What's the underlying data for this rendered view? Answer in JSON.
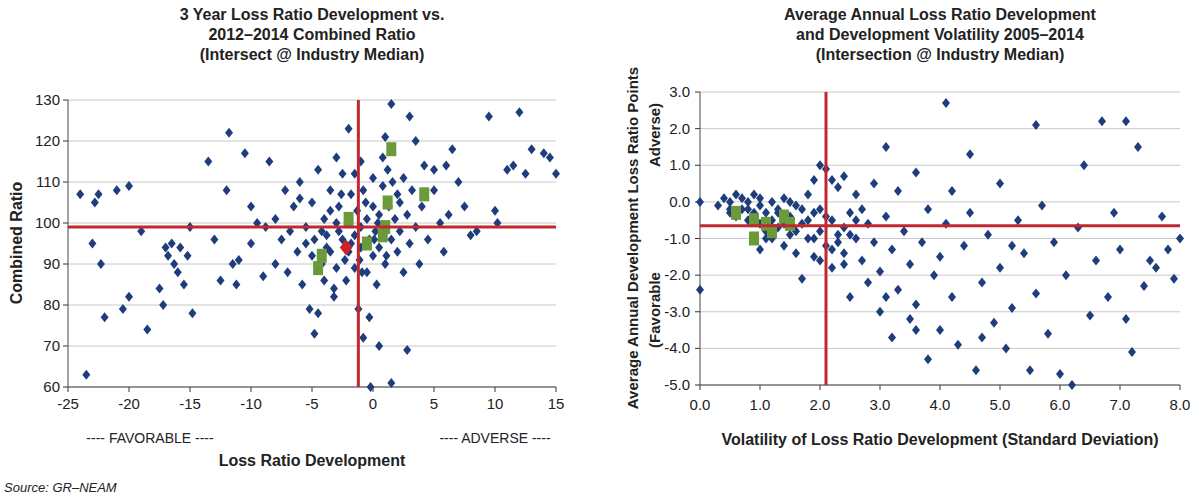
{
  "chart_data": [
    {
      "type": "scatter",
      "title": [
        "3 Year Loss Ratio Development vs.",
        "2012–2014 Combined Ratio",
        "(Intersect @ Industry Median)"
      ],
      "xlabel": "Loss Ratio Development",
      "ylabel": "Combined Ratio",
      "annotations": [
        "---- FAVORABLE ----",
        "---- ADVERSE ----"
      ],
      "xlim": [
        -25,
        15
      ],
      "ylim": [
        60,
        130
      ],
      "xticks": [
        -25,
        -20,
        -15,
        -10,
        -5,
        0,
        5,
        10,
        15
      ],
      "yticks": [
        60,
        70,
        80,
        90,
        100,
        110,
        120,
        130
      ],
      "grid": true,
      "median_x": -1.2,
      "median_y": 99,
      "series": [
        {
          "color": "#1f3d7c",
          "marker": "diamond",
          "x": [
            -24,
            -23.5,
            -23,
            -22.8,
            -22.5,
            -22.3,
            -22,
            -21,
            -20.5,
            -20,
            -20,
            -19,
            -18.5,
            -17.5,
            -17.2,
            -17,
            -16.8,
            -16.5,
            -16.3,
            -16,
            -15.8,
            -15.5,
            -15.2,
            -15,
            -14.8,
            -13.5,
            -13,
            -12.5,
            -12,
            -11.8,
            -11.5,
            -11.2,
            -11,
            -10.5,
            -10,
            -10,
            -9.5,
            -9,
            -8.8,
            -8.5,
            -8,
            -8,
            -7.5,
            -7.2,
            -7,
            -6.8,
            -6.5,
            -6.2,
            -6,
            -5.8,
            -5.5,
            -5.2,
            -5,
            -5,
            -4.8,
            -4.5,
            -4.5,
            -4.2,
            -4,
            -4,
            -3.8,
            -3.5,
            -3.5,
            -3.2,
            -3,
            -3,
            -2.8,
            -2.5,
            -2.5,
            -2.3,
            -2.2,
            -2,
            -2,
            -1.8,
            -1.5,
            -1.5,
            -1.3,
            -1.2,
            -1,
            -1,
            -1,
            -0.8,
            -0.8,
            -0.5,
            -0.5,
            -0.3,
            -0.2,
            0,
            0,
            0,
            0.2,
            0.3,
            0.5,
            0.5,
            0.8,
            1,
            1,
            1.2,
            1.3,
            1.5,
            1.5,
            1.8,
            2,
            2,
            2.2,
            2.5,
            2.5,
            2.8,
            3,
            3,
            3.2,
            3.5,
            3.8,
            4,
            4.2,
            4.5,
            5,
            5,
            5.5,
            5.8,
            6,
            6.2,
            6.5,
            7,
            7.5,
            8,
            8.5,
            9.5,
            10,
            10.2,
            11,
            11.5,
            12,
            12.5,
            13,
            14,
            14.5,
            15,
            1.5,
            -4.8,
            -3.2,
            2.8,
            0.5,
            -0.3,
            -2,
            1,
            3.5,
            -6,
            -1.5,
            0.8,
            -3,
            -3.5,
            -2.8,
            -1.8,
            -0.6,
            0.4,
            1.6,
            -4.2,
            -2.6,
            -1.1,
            0.1,
            2.2,
            -5.5,
            -3.8,
            -0.9,
            1.1
          ],
          "values": [
            107,
            63,
            95,
            105,
            107,
            90,
            77,
            108,
            79,
            82,
            109,
            98,
            74,
            84,
            80,
            94,
            92,
            95,
            90,
            88,
            94,
            85,
            92,
            99,
            78,
            115,
            96,
            86,
            108,
            122,
            90,
            85,
            91,
            117,
            104,
            95,
            100,
            87,
            99,
            115,
            101,
            90,
            96,
            108,
            88,
            98,
            104,
            93,
            110,
            85,
            99,
            79,
            92,
            105,
            96,
            78,
            113,
            90,
            101,
            86,
            97,
            108,
            93,
            82,
            100,
            89,
            104,
            96,
            112,
            91,
            86,
            100,
            93,
            107,
            97,
            89,
            103,
            79,
            99,
            94,
            115,
            72,
            108,
            101,
            88,
            96,
            60,
            104,
            92,
            111,
            98,
            85,
            102,
            94,
            109,
            99,
            90,
            113,
            104,
            96,
            61,
            101,
            93,
            107,
            98,
            111,
            88,
            102,
            95,
            126,
            108,
            99,
            90,
            104,
            114,
            96,
            108,
            113,
            100,
            93,
            114,
            102,
            118,
            110,
            104,
            97,
            98,
            126,
            103,
            100,
            113,
            114,
            127,
            112,
            118,
            117,
            116,
            112,
            129,
            73,
            84,
            69,
            70,
            77,
            123,
            121,
            120,
            106,
            112,
            116,
            116,
            103,
            98,
            95,
            105,
            100,
            110,
            98,
            107,
            91,
            96,
            105,
            95,
            94,
            88,
            92
          ]
        },
        {
          "color": "#6b9a3b",
          "marker": "square",
          "x": [
            -4.5,
            -4.2,
            -2,
            -0.5,
            0.8,
            1,
            1.2,
            1.5,
            4.2
          ],
          "values": [
            89,
            92,
            101,
            95,
            97,
            99,
            105,
            118,
            107
          ]
        },
        {
          "color": "#cc2229",
          "marker": "diamond",
          "x": [
            -2.2
          ],
          "values": [
            94
          ]
        }
      ]
    },
    {
      "type": "scatter",
      "title": [
        "Average Annual Loss Ratio Development",
        "and Development Volatility 2005–2014",
        "(Intersection @ Industry Median)"
      ],
      "xlabel": "Volatility of Loss Ratio Development (Standard Deviation)",
      "ylabel": "Average Annual Development Loss Ratio Points",
      "annotations": [
        "Adverse)",
        "(Favorable"
      ],
      "xlim": [
        0,
        8
      ],
      "ylim": [
        -5,
        3
      ],
      "xticks": [
        {
          "value": 0,
          "label": "0.0"
        },
        {
          "value": 1,
          "label": "1.0"
        },
        {
          "value": 2,
          "label": "2.0"
        },
        {
          "value": 3,
          "label": "3.0"
        },
        {
          "value": 4,
          "label": "4.0"
        },
        {
          "value": 5,
          "label": "5.0"
        },
        {
          "value": 6,
          "label": "6.0"
        },
        {
          "value": 7,
          "label": "7.0"
        },
        {
          "value": 8,
          "label": "8.0"
        }
      ],
      "yticks": [
        {
          "value": -5,
          "label": "-5.0"
        },
        {
          "value": -4,
          "label": "-4.0"
        },
        {
          "value": -3,
          "label": "-3.0"
        },
        {
          "value": -2,
          "label": "-2.0"
        },
        {
          "value": -1,
          "label": "-1.0"
        },
        {
          "value": 0,
          "label": "0.0"
        },
        {
          "value": 1,
          "label": "1.0"
        },
        {
          "value": 2,
          "label": "2.0"
        },
        {
          "value": 3,
          "label": "3.0"
        }
      ],
      "grid": true,
      "median_x": 2.1,
      "median_y": -0.65,
      "series": [
        {
          "color": "#1f3d7c",
          "marker": "diamond",
          "x": [
            0,
            0,
            0.3,
            0.4,
            0.5,
            0.5,
            0.6,
            0.6,
            0.7,
            0.7,
            0.8,
            0.8,
            0.9,
            0.9,
            1,
            1,
            1,
            1.1,
            1.1,
            1.2,
            1.2,
            1.2,
            1.3,
            1.3,
            1.4,
            1.4,
            1.5,
            1.5,
            1.6,
            1.6,
            1.7,
            1.7,
            1.8,
            1.8,
            1.9,
            1.9,
            2,
            2,
            2,
            2.1,
            2.1,
            2.2,
            2.2,
            2.3,
            2.3,
            2.4,
            2.4,
            2.5,
            2.5,
            2.6,
            2.6,
            2.7,
            2.8,
            2.8,
            2.9,
            2.9,
            3,
            3,
            3.1,
            3.1,
            3.2,
            3.2,
            3.3,
            3.3,
            3.4,
            3.5,
            3.5,
            3.6,
            3.6,
            3.7,
            3.8,
            3.8,
            3.9,
            4,
            4,
            4.1,
            4.1,
            4.2,
            4.3,
            4.4,
            4.5,
            4.5,
            4.6,
            4.7,
            4.8,
            4.9,
            5,
            5,
            5.1,
            5.2,
            5.3,
            5.4,
            5.5,
            5.6,
            5.6,
            5.7,
            5.8,
            5.9,
            6,
            6.1,
            6.2,
            6.3,
            6.4,
            6.5,
            6.6,
            6.7,
            6.8,
            6.9,
            7,
            7.1,
            7.1,
            7.2,
            7.3,
            7.4,
            7.5,
            7.6,
            7.7,
            7.8,
            7.9,
            8,
            3.6,
            4.2,
            2.7,
            3.1,
            4.7,
            5.2,
            1.3,
            0.8,
            1.5,
            2.2,
            2.4,
            1.9,
            0.5,
            1.1,
            2.3,
            1.6,
            1,
            1.4,
            1.8,
            2,
            2.2,
            2.5,
            1.7,
            2.1,
            1.2,
            2.4,
            1.9,
            2.6
          ],
          "values": [
            0,
            -2.4,
            -0.1,
            0.1,
            -0.3,
            0,
            0.2,
            -0.4,
            -0.2,
            0.1,
            -0.5,
            0,
            -0.3,
            0.2,
            -0.6,
            -0.1,
            0.1,
            -0.8,
            -0.3,
            0,
            -0.5,
            -1,
            -0.2,
            -0.7,
            -1.2,
            0.1,
            -0.4,
            -0.9,
            -1.4,
            -0.1,
            -0.6,
            -2.1,
            -1,
            0.2,
            -0.3,
            -1.5,
            -0.8,
            1,
            -0.2,
            -1.2,
            0.9,
            -0.5,
            -1.8,
            -0.9,
            0.4,
            -1.4,
            0.7,
            -0.3,
            -2.6,
            -1,
            0.2,
            -1.6,
            -0.6,
            -2.2,
            -1.1,
            0.5,
            -1.9,
            -3,
            1.5,
            -0.4,
            -3.7,
            -1.3,
            -2.4,
            0.3,
            -0.8,
            -1.7,
            -3.2,
            0.8,
            -2.8,
            -1.1,
            -0.2,
            -4.3,
            -2,
            -1.5,
            -3.5,
            2.7,
            -0.6,
            -2.6,
            -3.9,
            -1.2,
            1.3,
            -0.3,
            -4.6,
            -2.2,
            -0.9,
            -3.3,
            -1.8,
            0.5,
            -4,
            -2.9,
            -0.5,
            -1.4,
            -4.6,
            2.1,
            -2.5,
            -0.1,
            -3.6,
            -1.1,
            -4.7,
            -2,
            -5,
            -0.7,
            1,
            -3.1,
            -1.6,
            2.2,
            -2.6,
            -0.3,
            -1.3,
            2.2,
            -3.2,
            -4.1,
            1.5,
            -2.3,
            -1.6,
            -1.8,
            -0.4,
            -1.3,
            -2.1,
            -1,
            -3.5,
            0.3,
            -0.2,
            -2.6,
            -3.7,
            -1.2,
            -0.3,
            -0.2,
            0,
            0.6,
            -0.7,
            0.6,
            -0.2,
            -1,
            -1.1,
            -0.8,
            -1.3,
            -0.6,
            -0.5,
            -1.6,
            -1.3,
            -0.9,
            -0.2,
            -0.4,
            -0.8,
            -1.7,
            -1,
            -0.5
          ]
        },
        {
          "color": "#6b9a3b",
          "marker": "square",
          "x": [
            0.6,
            0.9,
            0.9,
            1.1,
            1.2,
            1.4,
            1.5
          ],
          "values": [
            -0.3,
            -0.5,
            -1,
            -0.6,
            -0.8,
            -0.4,
            -0.6
          ]
        }
      ]
    }
  ],
  "source": "Source: GR–NEAM"
}
